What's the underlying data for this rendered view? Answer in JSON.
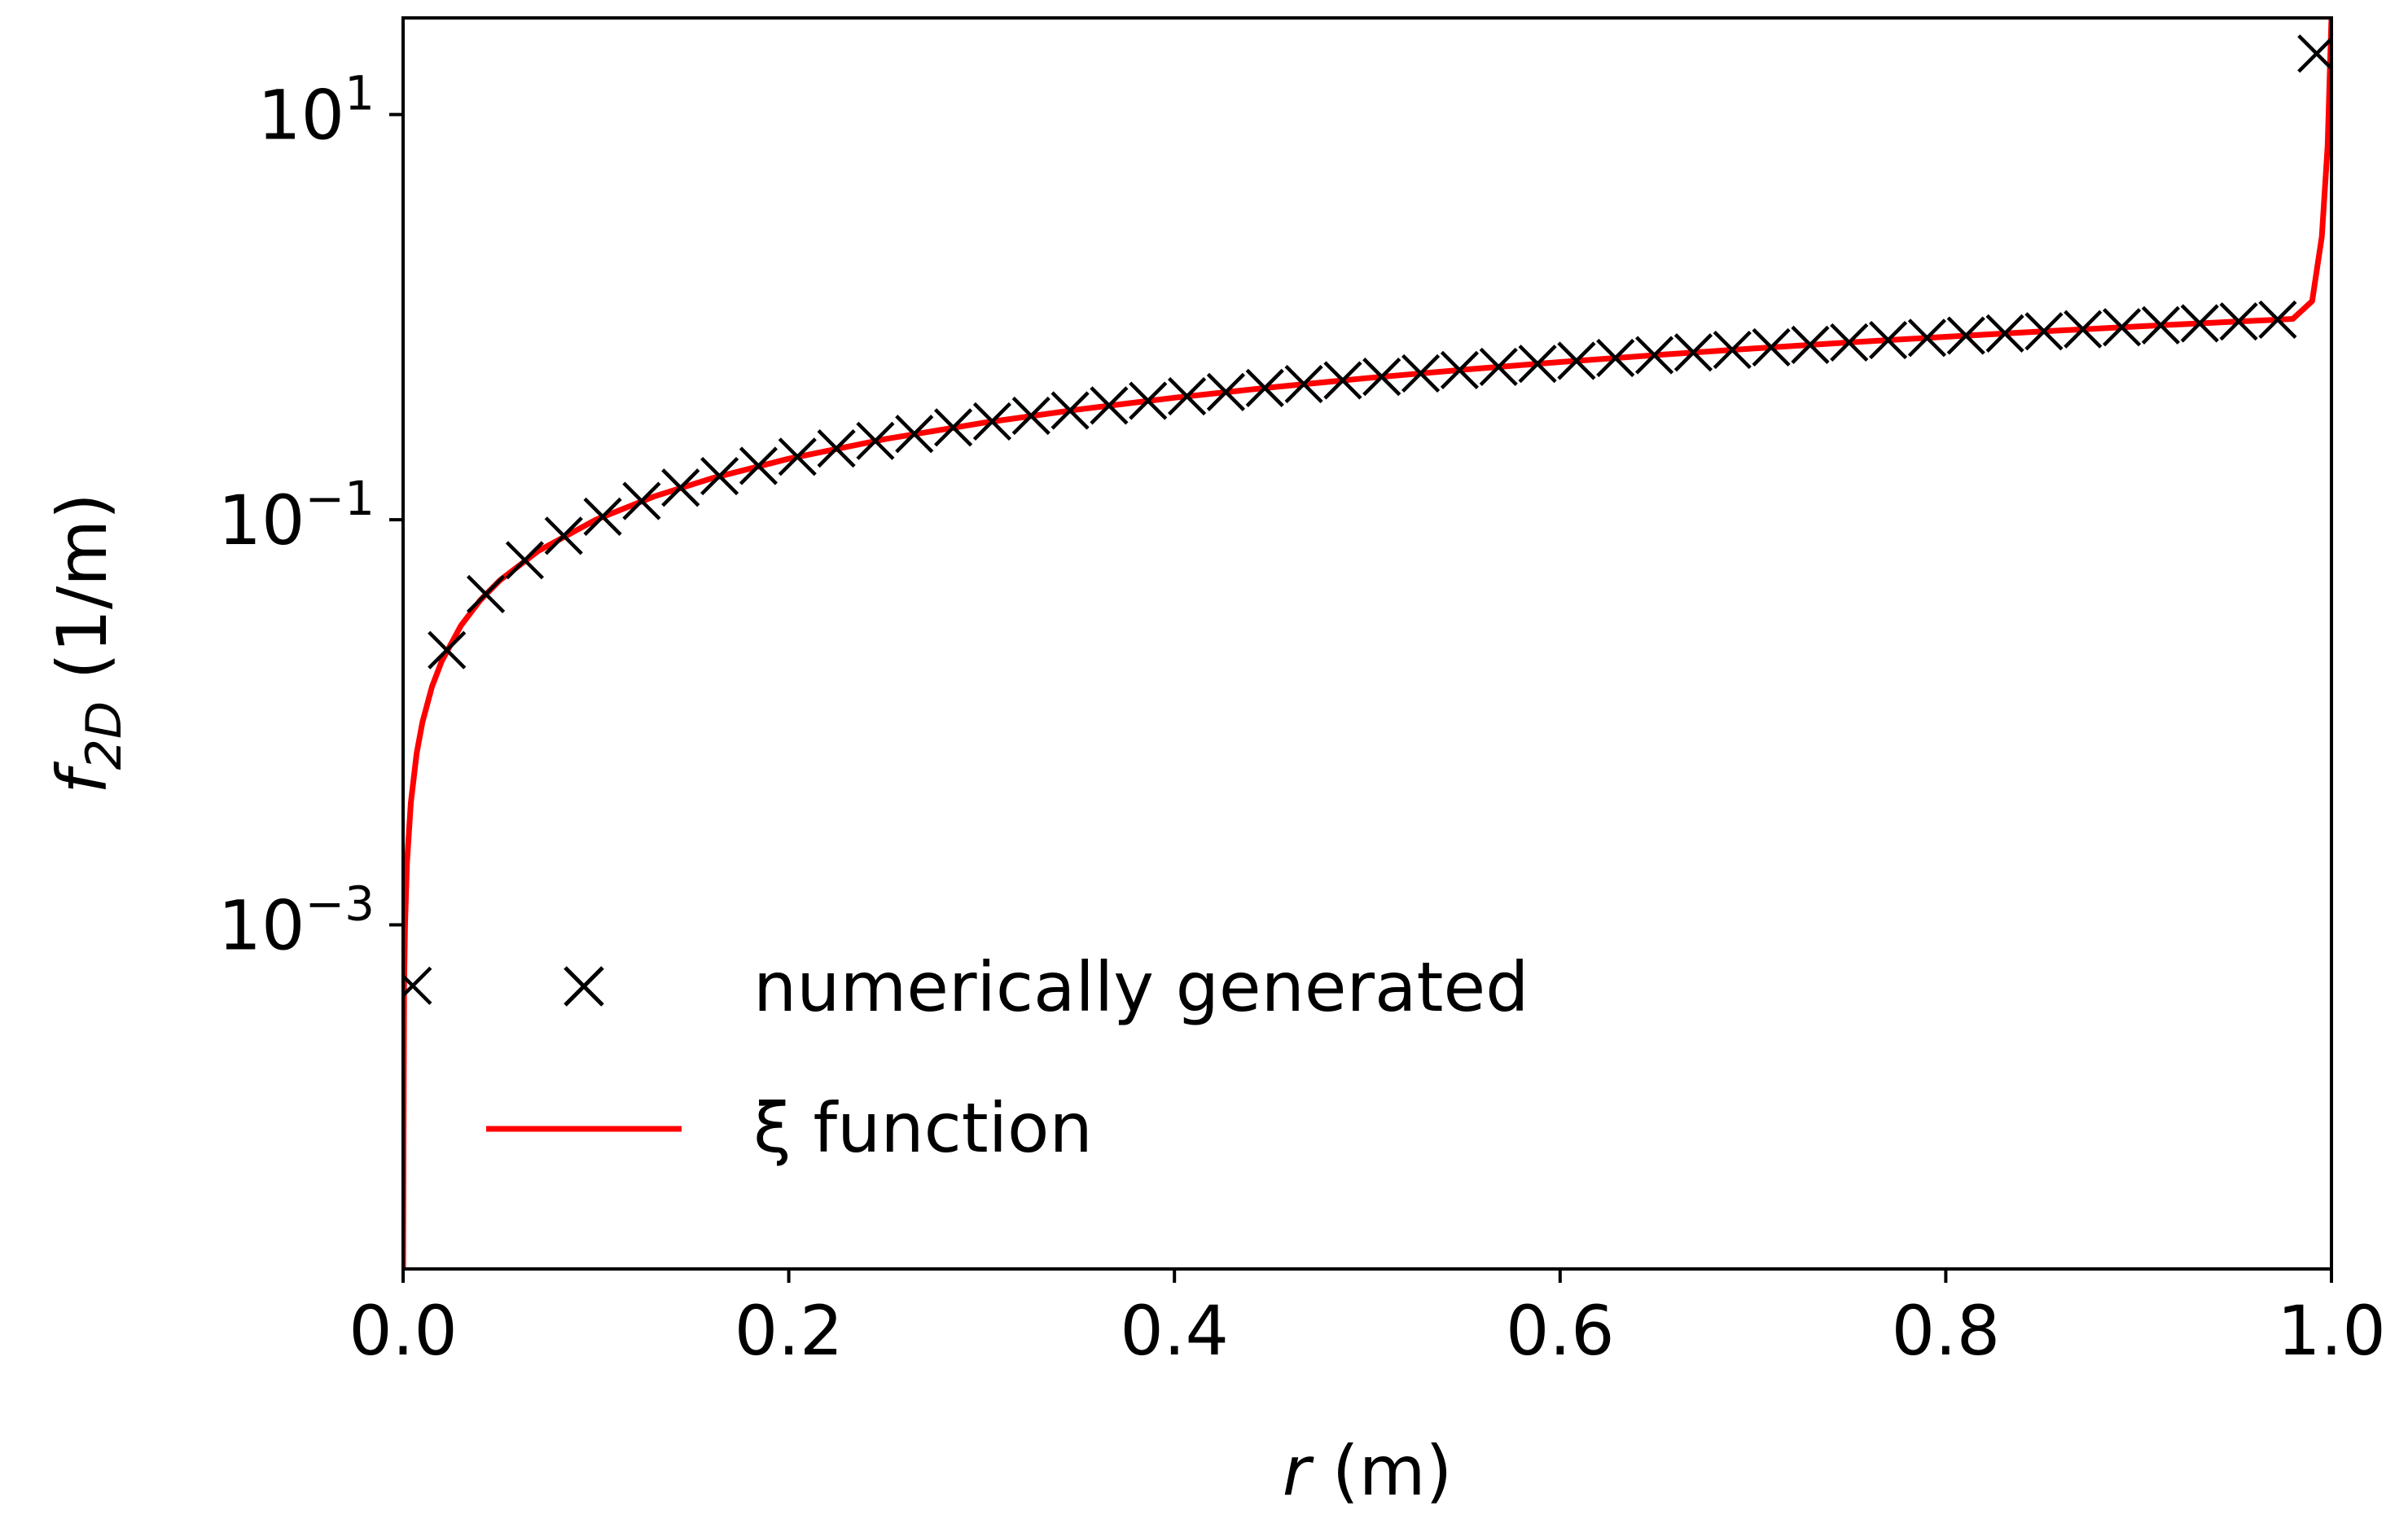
{
  "chart_data": {
    "type": "line",
    "title": "",
    "xlabel": "r (m)",
    "xlabel_parts": {
      "var": "r",
      "unit": " (m)"
    },
    "ylabel": "f_2D (1/m)",
    "ylabel_parts": {
      "var": "f",
      "sub": "2D",
      "unit": " (1/m)"
    },
    "xlim": [
      0.0,
      1.0
    ],
    "ylim": [
      2e-05,
      30
    ],
    "yscale": "log",
    "x_ticks": [
      "0.0",
      "0.2",
      "0.4",
      "0.6",
      "0.8",
      "1.0"
    ],
    "x_tick_values": [
      0.0,
      0.2,
      0.4,
      0.6,
      0.8,
      1.0
    ],
    "y_ticks": [
      {
        "value": 0.001,
        "base": "10",
        "exp": "−3"
      },
      {
        "value": 0.1,
        "base": "10",
        "exp": "−1"
      },
      {
        "value": 10,
        "base": "10",
        "exp": "1"
      }
    ],
    "grid": false,
    "legend_position": "lower-center",
    "series": [
      {
        "name": "numerically generated",
        "style": "markers",
        "marker": "x",
        "color": "#000000",
        "x": [
          0.005,
          0.0227,
          0.0429,
          0.0631,
          0.0833,
          0.1035,
          0.1237,
          0.1439,
          0.1641,
          0.1843,
          0.2045,
          0.2247,
          0.2449,
          0.2651,
          0.2853,
          0.3055,
          0.3257,
          0.3459,
          0.3661,
          0.3863,
          0.4065,
          0.4267,
          0.4469,
          0.4671,
          0.4873,
          0.5075,
          0.5277,
          0.5479,
          0.5681,
          0.5883,
          0.6085,
          0.6287,
          0.6489,
          0.6691,
          0.6893,
          0.7095,
          0.7297,
          0.7499,
          0.7701,
          0.7903,
          0.8105,
          0.8307,
          0.8509,
          0.8711,
          0.8913,
          0.9115,
          0.9317,
          0.9519,
          0.9721,
          0.9923
        ],
        "y": [
          0.0005,
          0.0227,
          0.0429,
          0.0631,
          0.0833,
          0.1035,
          0.1237,
          0.1439,
          0.1641,
          0.1843,
          0.2045,
          0.2247,
          0.2449,
          0.2651,
          0.2853,
          0.3055,
          0.3257,
          0.3459,
          0.3661,
          0.3863,
          0.4065,
          0.4267,
          0.4469,
          0.4671,
          0.4873,
          0.5075,
          0.5277,
          0.5479,
          0.5681,
          0.5883,
          0.6085,
          0.6287,
          0.6489,
          0.6691,
          0.6893,
          0.7095,
          0.7297,
          0.7499,
          0.7701,
          0.7903,
          0.8105,
          0.8307,
          0.8509,
          0.8711,
          0.8913,
          0.9115,
          0.9317,
          0.9519,
          0.9721,
          20.0
        ]
      },
      {
        "name": "ξ function",
        "style": "line",
        "color": "#ff0000",
        "x": [
          0.0,
          0.0005,
          0.001,
          0.002,
          0.004,
          0.007,
          0.01,
          0.015,
          0.02,
          0.03,
          0.04,
          0.05,
          0.07,
          0.1,
          0.13,
          0.16,
          0.2,
          0.25,
          0.3,
          0.35,
          0.4,
          0.45,
          0.5,
          0.55,
          0.6,
          0.65,
          0.7,
          0.75,
          0.8,
          0.85,
          0.9,
          0.93,
          0.95,
          0.97,
          0.98,
          0.99,
          0.995,
          0.998,
          1.0
        ],
        "y": [
          2e-05,
          0.0005,
          0.001,
          0.002,
          0.004,
          0.007,
          0.01,
          0.015,
          0.02,
          0.03,
          0.04,
          0.05,
          0.07,
          0.1,
          0.13,
          0.16,
          0.2,
          0.25,
          0.3,
          0.35,
          0.4,
          0.45,
          0.5,
          0.55,
          0.6,
          0.65,
          0.7,
          0.75,
          0.8,
          0.85,
          0.9,
          0.93,
          0.95,
          0.97,
          0.98,
          1.2,
          2.5,
          7.0,
          30.0
        ]
      }
    ]
  }
}
